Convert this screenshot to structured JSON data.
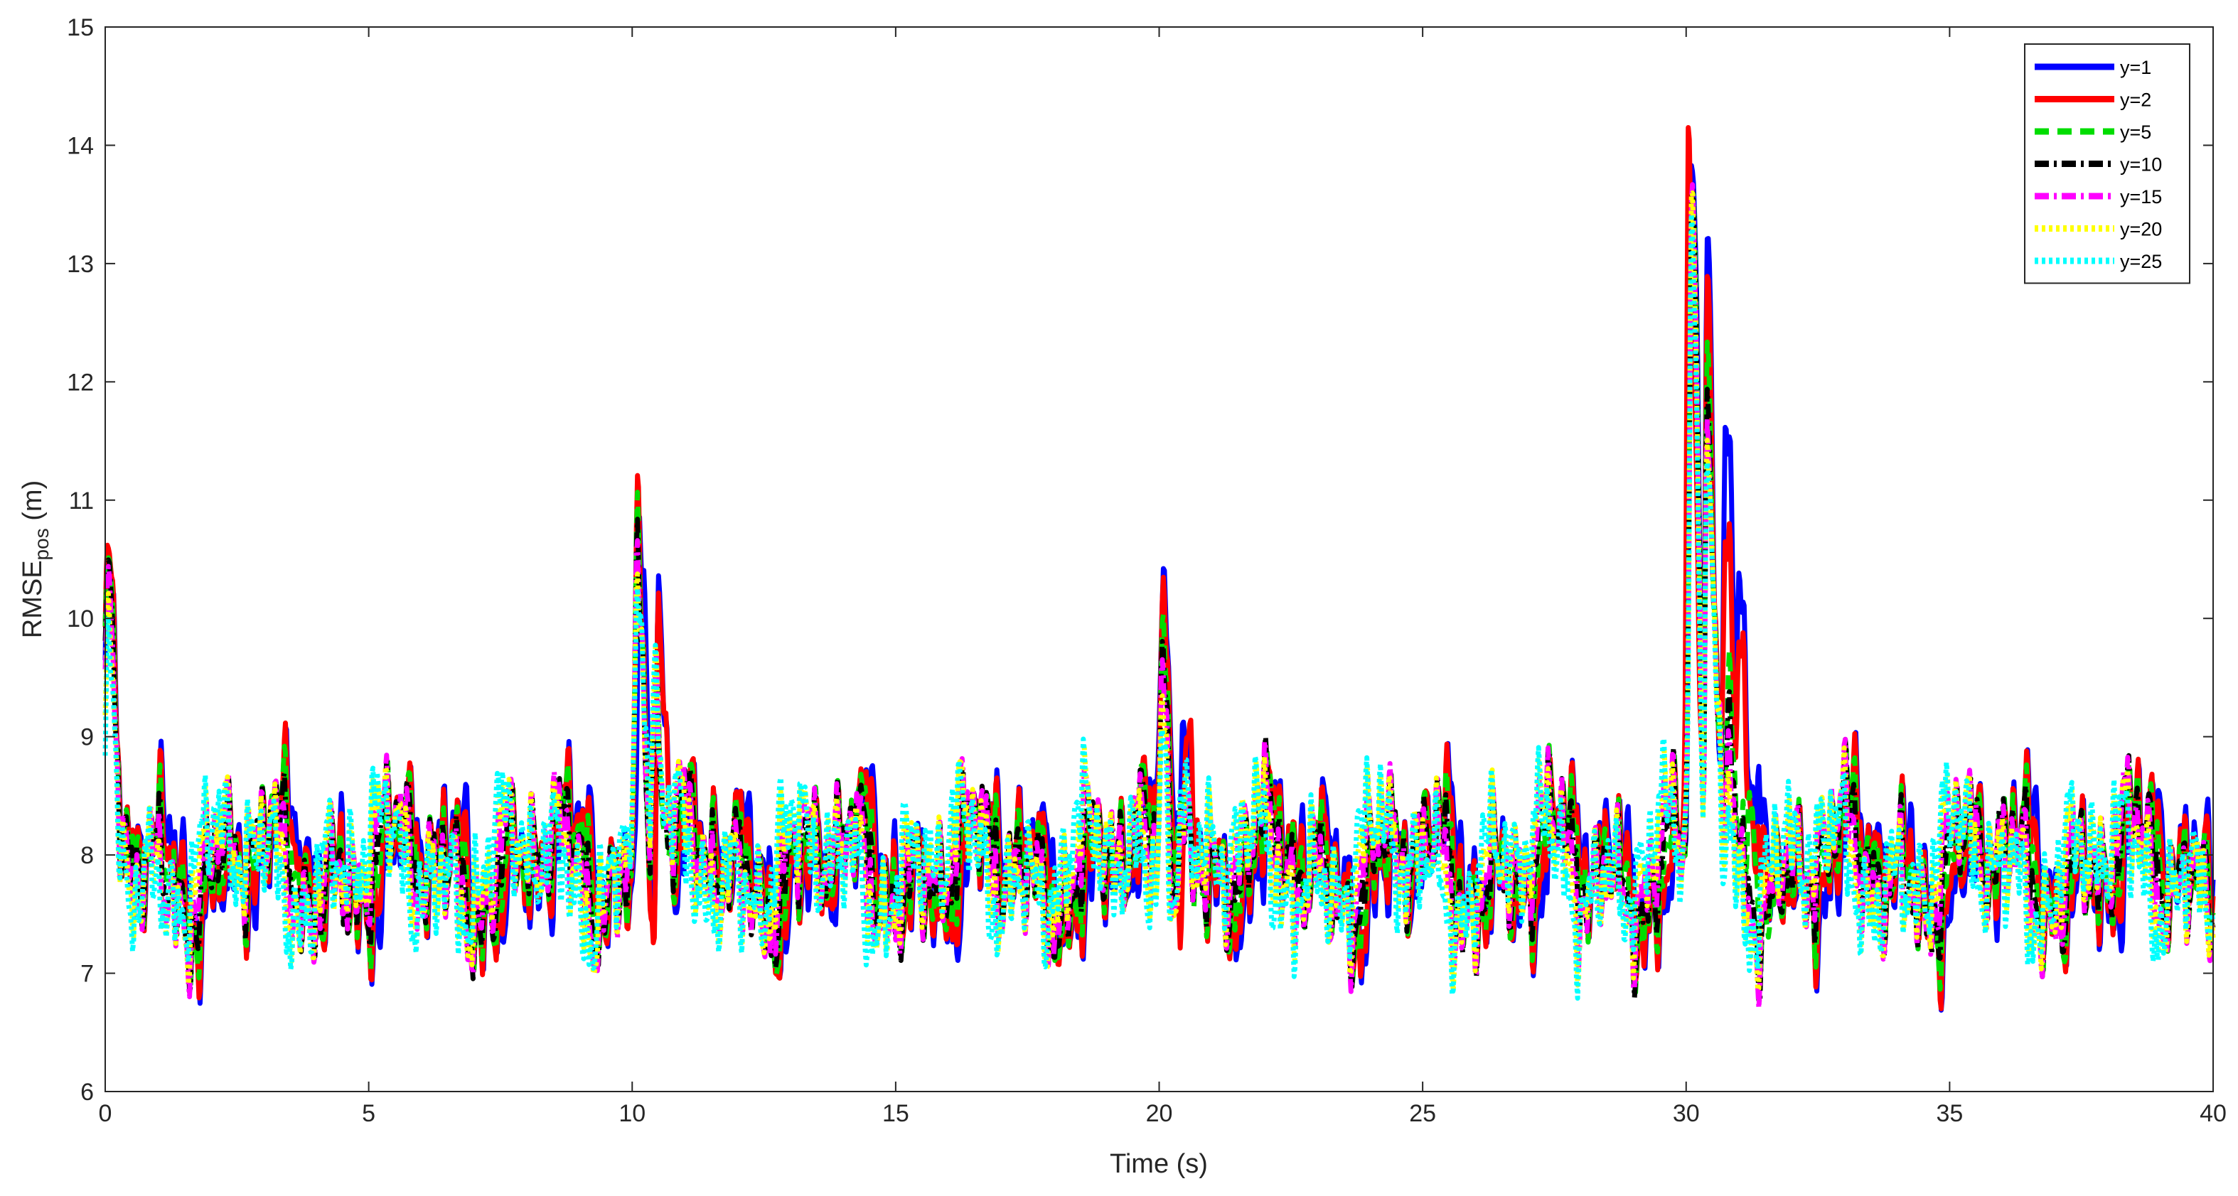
{
  "chart_data": {
    "type": "line",
    "title": "",
    "xlabel": "Time (s)",
    "ylabel_main": "RMSE",
    "ylabel_sub": "pos",
    "ylabel_unit": " (m)",
    "xlim": [
      0,
      40
    ],
    "ylim": [
      6,
      15
    ],
    "xticks": [
      0,
      5,
      10,
      15,
      20,
      25,
      30,
      35,
      40
    ],
    "yticks": [
      6,
      7,
      8,
      9,
      10,
      11,
      12,
      13,
      14,
      15
    ],
    "grid": false,
    "legend_position": "top-right",
    "series": [
      {
        "name": "y=1",
        "color": "#0000ff",
        "dash": "solid",
        "dev_scale": 1.0,
        "phase": 0.0,
        "peaks": [
          [
            0.05,
            10.3
          ],
          [
            10.15,
            10.9
          ],
          [
            10.5,
            10.7
          ],
          [
            20.05,
            10.1
          ],
          [
            20.45,
            9.8
          ],
          [
            30.1,
            14.4
          ],
          [
            30.4,
            13.2
          ],
          [
            30.75,
            11.3
          ],
          [
            31.0,
            10.2
          ],
          [
            31.4,
            9.1
          ]
        ]
      },
      {
        "name": "y=2",
        "color": "#ff0000",
        "dash": "solid",
        "dev_scale": 1.03,
        "phase": 0.4,
        "peaks": [
          [
            0.05,
            10.3
          ],
          [
            10.1,
            11.0
          ],
          [
            10.5,
            10.4
          ],
          [
            20.05,
            10.0
          ],
          [
            20.5,
            9.6
          ],
          [
            30.05,
            14.15
          ],
          [
            30.4,
            12.8
          ],
          [
            30.75,
            10.3
          ],
          [
            31.0,
            9.8
          ],
          [
            31.4,
            8.9
          ]
        ]
      },
      {
        "name": "y=5",
        "color": "#00dd00",
        "dash": "20,12",
        "dev_scale": 1.0,
        "phase": 0.8,
        "peaks": [
          [
            0.05,
            10.2
          ],
          [
            10.1,
            10.9
          ],
          [
            10.4,
            9.8
          ],
          [
            20.05,
            9.8
          ],
          [
            20.4,
            9.3
          ],
          [
            30.1,
            13.8
          ],
          [
            30.4,
            12.2
          ],
          [
            30.8,
            9.0
          ],
          [
            31.2,
            8.6
          ]
        ]
      },
      {
        "name": "y=10",
        "color": "#000000",
        "dash": "20,7,4,7",
        "dev_scale": 0.98,
        "phase": 1.2,
        "peaks": [
          [
            0.05,
            10.2
          ],
          [
            10.1,
            10.8
          ],
          [
            10.4,
            9.5
          ],
          [
            20.05,
            9.7
          ],
          [
            20.4,
            9.1
          ],
          [
            30.1,
            13.6
          ],
          [
            30.4,
            11.8
          ],
          [
            30.8,
            8.9
          ]
        ]
      },
      {
        "name": "y=15",
        "color": "#ff00ff",
        "dash": "20,7,4,7",
        "dev_scale": 1.0,
        "phase": 1.6,
        "peaks": [
          [
            0.05,
            10.2
          ],
          [
            10.1,
            10.8
          ],
          [
            10.4,
            9.4
          ],
          [
            20.05,
            9.7
          ],
          [
            20.4,
            9.0
          ],
          [
            30.1,
            13.5
          ],
          [
            30.4,
            11.6
          ],
          [
            30.8,
            8.8
          ]
        ]
      },
      {
        "name": "y=20",
        "color": "#ffff00",
        "dash": "5,5",
        "dev_scale": 1.0,
        "phase": 2.0,
        "peaks": [
          [
            0.05,
            10.1
          ],
          [
            10.1,
            10.7
          ],
          [
            10.4,
            9.3
          ],
          [
            20.05,
            9.6
          ],
          [
            20.4,
            8.9
          ],
          [
            30.1,
            13.45
          ],
          [
            30.4,
            11.5
          ],
          [
            30.8,
            8.7
          ]
        ]
      },
      {
        "name": "y=25",
        "color": "#00ffff",
        "dash": "5,5",
        "dev_scale": 0.99,
        "phase": 2.4,
        "peaks": [
          [
            0.05,
            10.1
          ],
          [
            10.1,
            10.7
          ],
          [
            10.4,
            9.2
          ],
          [
            20.05,
            9.5
          ],
          [
            20.4,
            8.8
          ],
          [
            30.1,
            13.3
          ],
          [
            30.4,
            11.4
          ],
          [
            30.8,
            8.6
          ]
        ]
      }
    ]
  }
}
